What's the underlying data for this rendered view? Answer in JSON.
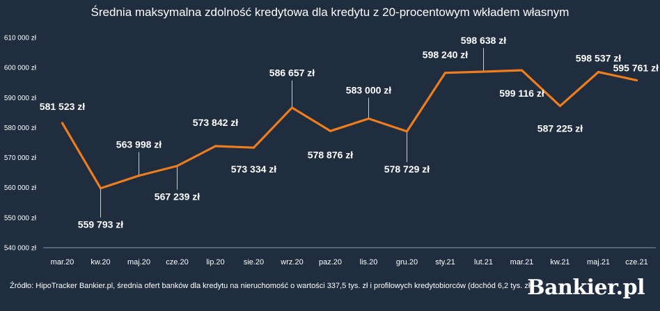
{
  "chart_data": {
    "type": "line",
    "title": "Średnia maksymalna zdolność kredytowa dla kredytu z 20-procentowym wkładem własnym",
    "categories": [
      "mar.20",
      "kw.20",
      "maj.20",
      "cze.20",
      "lip.20",
      "sie.20",
      "wrz.20",
      "paz.20",
      "lis.20",
      "gru.20",
      "sty.21",
      "lut.21",
      "mar.21",
      "kw.21",
      "maj.21",
      "cze.21"
    ],
    "values": [
      581523,
      559793,
      563998,
      567239,
      573842,
      573334,
      586657,
      578876,
      583000,
      578729,
      598240,
      598638,
      599116,
      587225,
      598537,
      595761
    ],
    "data_labels": [
      "581 523 zł",
      "559 793 zł",
      "563 998 zł",
      "567 239 zł",
      "573 842 zł",
      "573 334 zł",
      "586 657 zł",
      "578 876 zł",
      "583 000 zł",
      "578 729 zł",
      "598 240 zł",
      "598 638 zł",
      "599 116 zł",
      "587 225 zł",
      "598 537 zł",
      "595 761 zł"
    ],
    "ylim": [
      540000,
      610000
    ],
    "y_ticks": [
      540000,
      550000,
      560000,
      570000,
      580000,
      590000,
      600000,
      610000
    ],
    "y_tick_labels": [
      "540 000 zł",
      "550 000 zł",
      "560 000 zł",
      "570 000 zł",
      "580 000 zł",
      "590 000 zł",
      "600 000 zł",
      "610 000 zł"
    ],
    "grid": false,
    "legend": "none",
    "line_color": "#ee7d1e",
    "leader_color": "#c9d0d8"
  },
  "source_note": "Źródło: HipoTracker Bankier.pl, średnia ofert banków dla kredytu na nieruchomość o wartości 337,5 tys. zł i profilowych kredytobiorców (dochód 6,2 tys. zł)",
  "brand": {
    "logo_text": "Bankier.pl",
    "background": "#1f2d3f"
  }
}
